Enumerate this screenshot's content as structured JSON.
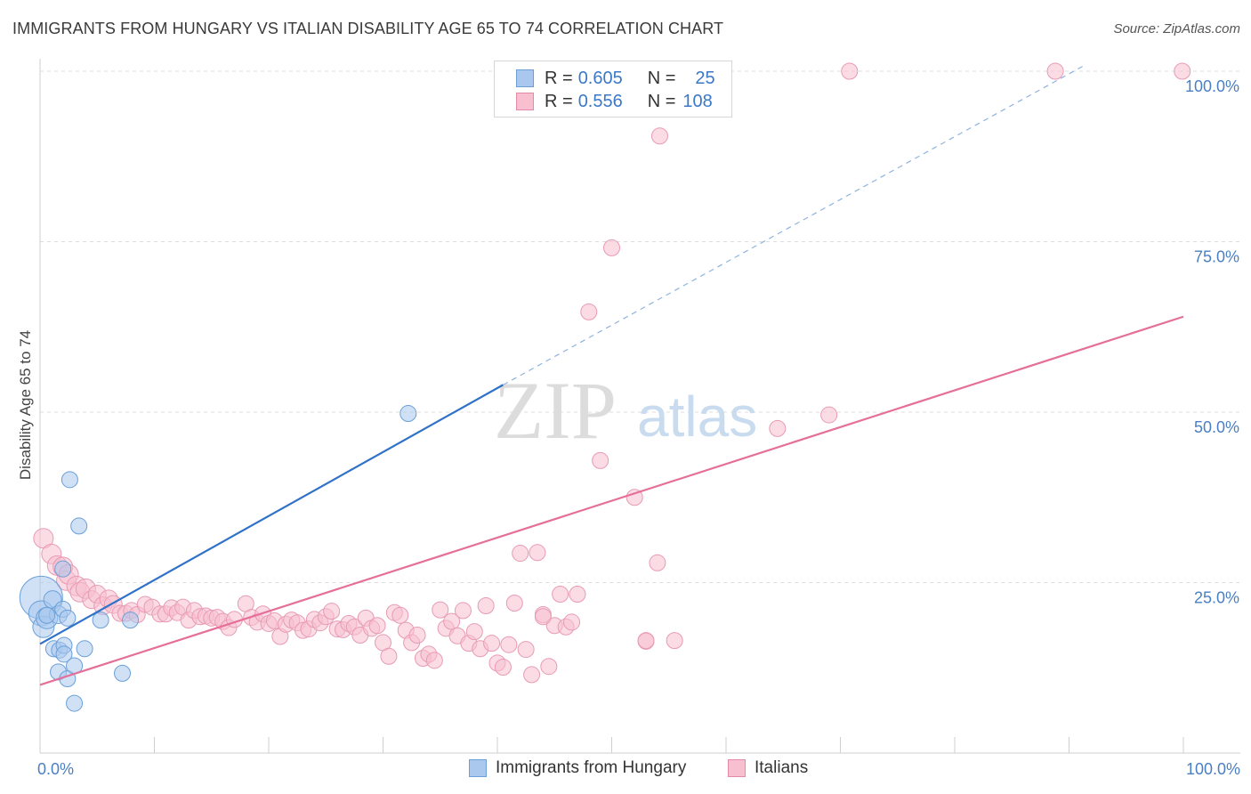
{
  "title": "IMMIGRANTS FROM HUNGARY VS ITALIAN DISABILITY AGE 65 TO 74 CORRELATION CHART",
  "source": "Source: ZipAtlas.com",
  "watermark": {
    "zip": "ZIP",
    "atlas": "atlas"
  },
  "legend_top": [
    {
      "r_label": "R =",
      "r_value": "0.605",
      "n_label": "N =",
      "n_value": "25",
      "color": "#aac8ee",
      "border": "#6a9fd8"
    },
    {
      "r_label": "R =",
      "r_value": "0.556",
      "n_label": "N =",
      "n_value": "108",
      "color": "#f7bfd0",
      "border": "#e38aa8"
    }
  ],
  "legend_bottom": [
    {
      "label": "Immigrants from Hungary",
      "color": "#aac8ee",
      "border": "#6a9fd8"
    },
    {
      "label": "Italians",
      "color": "#f7bfd0",
      "border": "#e38aa8"
    }
  ],
  "chart_data": {
    "type": "scatter",
    "title": "IMMIGRANTS FROM HUNGARY VS ITALIAN DISABILITY AGE 65 TO 74 CORRELATION CHART",
    "xlabel": "",
    "ylabel": "Disability Age 65 to 74",
    "xlim": [
      0,
      100
    ],
    "ylim": [
      0,
      100
    ],
    "x_tick_labels": [
      "0.0%",
      "100.0%"
    ],
    "y_tick_labels": [
      "25.0%",
      "50.0%",
      "75.0%",
      "100.0%"
    ],
    "y_ticks": [
      25,
      50,
      75,
      100
    ],
    "grid": true,
    "legend_placement": "top-center",
    "series": [
      {
        "name": "Immigrants from Hungary",
        "color": "#6a9fd8",
        "fill": "#aac8ee",
        "trend": {
          "x": [
            0,
            40.5
          ],
          "y": [
            16,
            54
          ],
          "extended_to": [
            91.5,
            101
          ]
        },
        "points": [
          [
            0.1,
            22.8,
            24
          ],
          [
            0.1,
            20.5,
            14
          ],
          [
            0.3,
            18.5,
            12
          ],
          [
            0.6,
            19.8,
            12
          ],
          [
            1.1,
            22.5,
            10
          ],
          [
            1.6,
            20.3,
            10
          ],
          [
            1.2,
            15.3,
            9
          ],
          [
            1.6,
            11.9,
            9
          ],
          [
            1.7,
            15.1,
            9
          ],
          [
            2.0,
            27.0,
            9
          ],
          [
            2.0,
            21.1,
            9
          ],
          [
            2.1,
            15.8,
            9
          ],
          [
            2.1,
            14.5,
            9
          ],
          [
            2.4,
            10.9,
            9
          ],
          [
            2.4,
            19.8,
            9
          ],
          [
            2.6,
            40.1,
            9
          ],
          [
            3.0,
            12.8,
            9
          ],
          [
            3.0,
            7.3,
            9
          ],
          [
            3.4,
            33.3,
            9
          ],
          [
            3.9,
            15.3,
            9
          ],
          [
            5.3,
            19.5,
            9
          ],
          [
            7.2,
            11.7,
            9
          ],
          [
            7.9,
            19.5,
            9
          ],
          [
            32.2,
            49.8,
            9
          ],
          [
            0.6,
            20.2,
            9
          ]
        ]
      },
      {
        "name": "Italians",
        "color": "#e56f99",
        "fill": "#f7bfd0",
        "trend": {
          "x": [
            0,
            100
          ],
          "y": [
            10,
            64
          ]
        },
        "points": [
          [
            0.3,
            31.5,
            11
          ],
          [
            1.0,
            29.2,
            11
          ],
          [
            1.5,
            27.5,
            11
          ],
          [
            2.0,
            27.3,
            11
          ],
          [
            2.3,
            25.3,
            11
          ],
          [
            2.5,
            26.2,
            11
          ],
          [
            3.2,
            24.5,
            11
          ],
          [
            3.5,
            23.6,
            11
          ],
          [
            4.0,
            24.1,
            11
          ],
          [
            4.5,
            22.5,
            10
          ],
          [
            5.0,
            23.3,
            10
          ],
          [
            5.5,
            21.6,
            10
          ],
          [
            6.0,
            22.6,
            10
          ],
          [
            6.4,
            21.8,
            10
          ],
          [
            7.0,
            20.5,
            9
          ],
          [
            7.5,
            20.5,
            9
          ],
          [
            8.0,
            20.9,
            9
          ],
          [
            8.5,
            20.3,
            9
          ],
          [
            9.2,
            21.8,
            9
          ],
          [
            9.8,
            21.4,
            9
          ],
          [
            10.5,
            20.4,
            9
          ],
          [
            11.0,
            20.4,
            9
          ],
          [
            11.5,
            21.3,
            9
          ],
          [
            12.0,
            20.6,
            9
          ],
          [
            12.5,
            21.4,
            9
          ],
          [
            13.0,
            19.5,
            9
          ],
          [
            13.5,
            20.9,
            9
          ],
          [
            14.0,
            20.0,
            9
          ],
          [
            14.5,
            20.1,
            9
          ],
          [
            15.0,
            19.8,
            9
          ],
          [
            15.5,
            19.9,
            9
          ],
          [
            16.0,
            19.3,
            9
          ],
          [
            16.5,
            18.4,
            9
          ],
          [
            17.0,
            19.6,
            9
          ],
          [
            18.0,
            21.9,
            9
          ],
          [
            18.5,
            19.9,
            9
          ],
          [
            19.0,
            19.2,
            9
          ],
          [
            19.5,
            20.4,
            9
          ],
          [
            20.0,
            19.0,
            9
          ],
          [
            20.5,
            19.4,
            9
          ],
          [
            21.0,
            17.1,
            9
          ],
          [
            21.5,
            18.9,
            9
          ],
          [
            22.0,
            19.5,
            9
          ],
          [
            22.5,
            19.1,
            9
          ],
          [
            23.0,
            18.0,
            9
          ],
          [
            23.5,
            18.2,
            9
          ],
          [
            24.0,
            19.6,
            9
          ],
          [
            24.5,
            19.1,
            9
          ],
          [
            25.0,
            20.0,
            9
          ],
          [
            25.5,
            20.8,
            9
          ],
          [
            26.0,
            18.2,
            9
          ],
          [
            26.5,
            18.1,
            9
          ],
          [
            27.0,
            19.0,
            9
          ],
          [
            27.5,
            18.5,
            9
          ],
          [
            28.0,
            17.3,
            9
          ],
          [
            28.5,
            19.8,
            9
          ],
          [
            29.0,
            18.3,
            9
          ],
          [
            29.5,
            18.7,
            9
          ],
          [
            30.0,
            16.2,
            9
          ],
          [
            30.5,
            14.2,
            9
          ],
          [
            31.0,
            20.6,
            9
          ],
          [
            31.5,
            20.2,
            9
          ],
          [
            32.0,
            18.0,
            9
          ],
          [
            32.5,
            16.2,
            9
          ],
          [
            33.0,
            17.3,
            9
          ],
          [
            33.5,
            13.9,
            9
          ],
          [
            34.0,
            14.5,
            9
          ],
          [
            34.5,
            13.6,
            9
          ],
          [
            35.0,
            21.0,
            9
          ],
          [
            35.5,
            18.3,
            9
          ],
          [
            36.0,
            19.3,
            9
          ],
          [
            36.5,
            17.2,
            9
          ],
          [
            37.0,
            20.9,
            9
          ],
          [
            37.5,
            16.1,
            9
          ],
          [
            38.0,
            17.8,
            9
          ],
          [
            38.5,
            15.3,
            9
          ],
          [
            39.0,
            21.6,
            9
          ],
          [
            39.5,
            16.1,
            9
          ],
          [
            40.0,
            13.2,
            9
          ],
          [
            40.5,
            12.6,
            9
          ],
          [
            41.0,
            15.9,
            9
          ],
          [
            41.5,
            22.0,
            9
          ],
          [
            42.0,
            29.3,
            9
          ],
          [
            42.5,
            15.2,
            9
          ],
          [
            43.0,
            11.5,
            9
          ],
          [
            43.5,
            29.4,
            9
          ],
          [
            44.0,
            20.3,
            9
          ],
          [
            44.5,
            12.7,
            9
          ],
          [
            45.0,
            18.7,
            9
          ],
          [
            45.5,
            23.3,
            9
          ],
          [
            46.0,
            18.5,
            9
          ],
          [
            46.5,
            19.2,
            9
          ],
          [
            47.0,
            23.3,
            9
          ],
          [
            48.0,
            64.7,
            9
          ],
          [
            49.0,
            42.9,
            9
          ],
          [
            50.0,
            74.1,
            9
          ],
          [
            52.0,
            37.5,
            9
          ],
          [
            53.0,
            16.4,
            9
          ],
          [
            54.0,
            27.9,
            9
          ],
          [
            54.2,
            90.5,
            9
          ],
          [
            55.5,
            16.5,
            9
          ],
          [
            64.5,
            47.6,
            9
          ],
          [
            69.0,
            49.6,
            9
          ],
          [
            70.8,
            100.0,
            9
          ],
          [
            88.8,
            100.0,
            9
          ],
          [
            99.9,
            100.0,
            9
          ],
          [
            53.0,
            16.5,
            9
          ],
          [
            44.0,
            20.0,
            9
          ]
        ]
      }
    ]
  }
}
